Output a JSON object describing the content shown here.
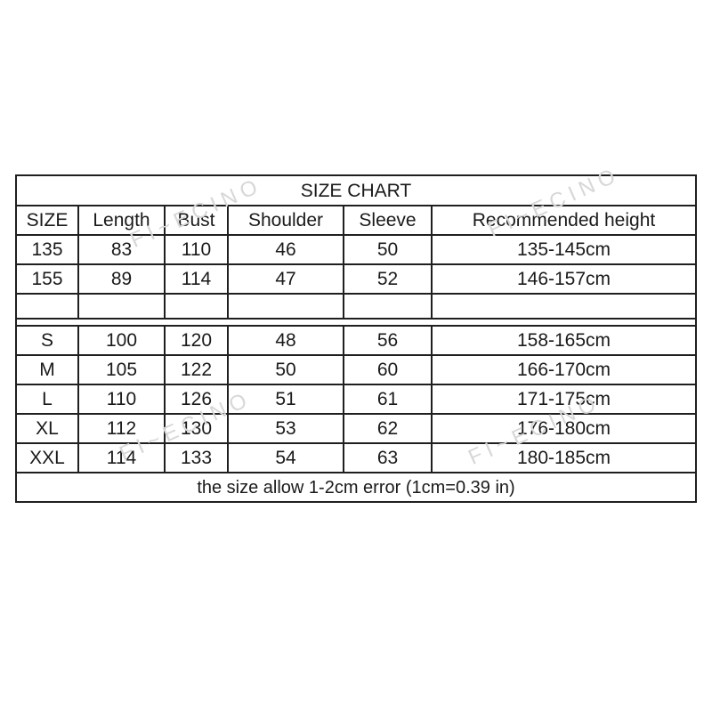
{
  "page": {
    "background": "#ffffff"
  },
  "chart_data": {
    "type": "table",
    "title": "SIZE CHART",
    "columns": [
      "SIZE",
      "Length",
      "Bust",
      "Shoulder",
      "Sleeve",
      "Recommended height"
    ],
    "rows": [
      [
        "135",
        "83",
        "110",
        "46",
        "50",
        "135-145cm"
      ],
      [
        "155",
        "89",
        "114",
        "47",
        "52",
        "146-157cm"
      ],
      [
        "",
        "",
        "",
        "",
        "",
        ""
      ],
      [
        "S",
        "100",
        "120",
        "48",
        "56",
        "158-165cm"
      ],
      [
        "M",
        "105",
        "122",
        "50",
        "60",
        "166-170cm"
      ],
      [
        "L",
        "110",
        "126",
        "51",
        "61",
        "171-175cm"
      ],
      [
        "XL",
        "112",
        "130",
        "53",
        "62",
        "176-180cm"
      ],
      [
        "XXL",
        "114",
        "133",
        "54",
        "63",
        "180-185cm"
      ]
    ],
    "footnote": "the size allow 1-2cm error (1cm=0.39 in)",
    "layout": {
      "grid": "on",
      "section_gap_after_row": 2
    }
  },
  "watermark": {
    "text": "FI~ECINO",
    "color": "#d7d7d7"
  },
  "colors": {
    "border": "#1f1f1f",
    "text": "#1a1a1a",
    "background": "#ffffff"
  }
}
